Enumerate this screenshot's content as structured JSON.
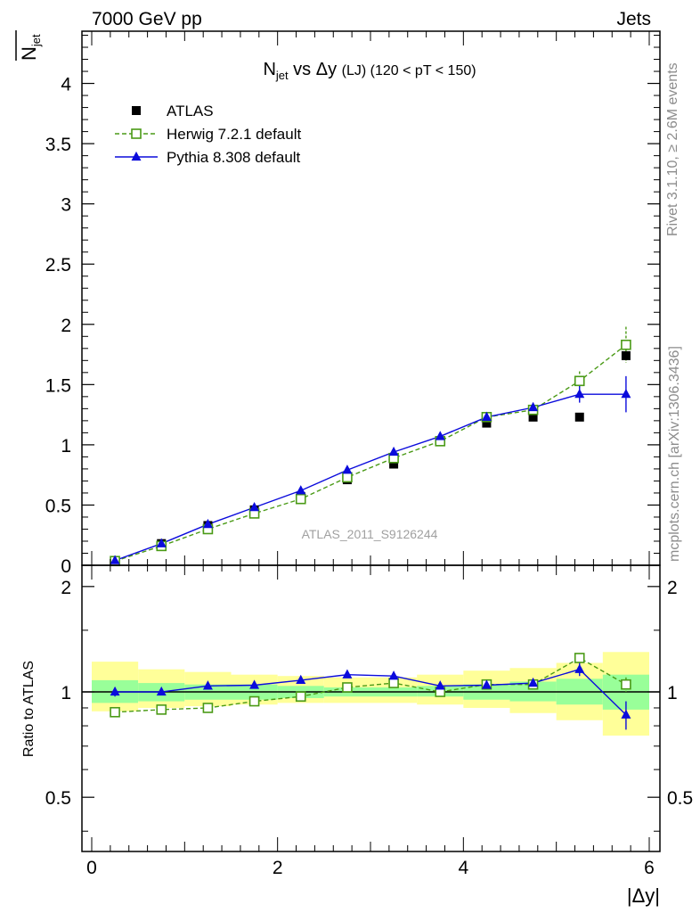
{
  "header": {
    "left": "7000 GeV pp",
    "right": "Jets"
  },
  "side_labels": {
    "rivet": "Rivet 3.1.10, ≥ 2.6M events",
    "mcplots": "mcplots.cern.ch [arXiv:1306.3436]"
  },
  "watermark": "ATLAS_2011_S9126244",
  "chart_data": [
    {
      "type": "scatter",
      "title": {
        "main": "N",
        "sub": "jet",
        "mid": " vs Δy ",
        "small": "(LJ)",
        "range": " (120 < pT < 150)"
      },
      "ylabel": {
        "main": "N",
        "sub": "jet",
        "display": "N̅jet"
      },
      "xlim": [
        0,
        6
      ],
      "ylim": [
        0,
        4.5
      ],
      "yticks": [
        "0",
        "0.5",
        "1",
        "1.5",
        "2",
        "2.5",
        "3",
        "3.5",
        "4"
      ],
      "ytick_values": [
        0,
        0.5,
        1,
        1.5,
        2,
        2.5,
        3,
        3.5,
        4
      ],
      "legend_position": "top-left",
      "series": [
        {
          "name": "ATLAS",
          "color": "#000000",
          "marker": "square-filled",
          "x": [
            0.25,
            0.75,
            1.25,
            1.75,
            2.25,
            2.75,
            3.25,
            3.75,
            4.25,
            4.75,
            5.25,
            5.75
          ],
          "y": [
            0.04,
            0.18,
            0.33,
            0.46,
            0.57,
            0.71,
            0.84,
            1.03,
            1.18,
            1.23,
            1.23,
            1.74
          ],
          "err": [
            0.01,
            0.01,
            0.01,
            0.01,
            0.01,
            0.01,
            0.01,
            0.01,
            0.01,
            0.02,
            0.02,
            0.03
          ]
        },
        {
          "name": "Herwig 7.2.1 default",
          "color": "#4a9a16",
          "marker": "square-open",
          "line": "dashed",
          "x": [
            0.25,
            0.75,
            1.25,
            1.75,
            2.25,
            2.75,
            3.25,
            3.75,
            4.25,
            4.75,
            5.25,
            5.75
          ],
          "y": [
            0.035,
            0.16,
            0.3,
            0.43,
            0.55,
            0.73,
            0.89,
            1.03,
            1.23,
            1.29,
            1.53,
            1.83
          ],
          "err": [
            0.005,
            0.01,
            0.01,
            0.01,
            0.01,
            0.015,
            0.015,
            0.02,
            0.03,
            0.04,
            0.08,
            0.15
          ]
        },
        {
          "name": "Pythia 8.308 default",
          "color": "#0b0bdc",
          "marker": "triangle-filled",
          "line": "solid",
          "x": [
            0.25,
            0.75,
            1.25,
            1.75,
            2.25,
            2.75,
            3.25,
            3.75,
            4.25,
            4.75,
            5.25,
            5.75
          ],
          "y": [
            0.04,
            0.18,
            0.34,
            0.48,
            0.62,
            0.79,
            0.94,
            1.07,
            1.23,
            1.31,
            1.42,
            1.42
          ],
          "err": [
            0.005,
            0.01,
            0.01,
            0.01,
            0.01,
            0.015,
            0.015,
            0.02,
            0.03,
            0.04,
            0.07,
            0.15
          ]
        }
      ]
    },
    {
      "type": "scatter",
      "ylabel": "Ratio to ATLAS",
      "xlabel": "|Δy|",
      "xlim": [
        0,
        6
      ],
      "ylim": [
        0.35,
        2.3
      ],
      "log_y": true,
      "xticks": [
        "0",
        "2",
        "4",
        "6"
      ],
      "xtick_values": [
        0,
        2,
        4,
        6
      ],
      "yticks": [
        "0.5",
        "1",
        "2"
      ],
      "ytick_values": [
        0.5,
        1,
        2
      ],
      "bands": {
        "inner_color": "#99ff99",
        "outer_color": "#ffff99",
        "x_edges": [
          0,
          0.5,
          1,
          1.5,
          2,
          2.5,
          3,
          3.5,
          4,
          4.5,
          5,
          5.5,
          6
        ],
        "inner": [
          [
            0.93,
            1.08
          ],
          [
            0.94,
            1.06
          ],
          [
            0.95,
            1.05
          ],
          [
            0.95,
            1.05
          ],
          [
            0.96,
            1.04
          ],
          [
            0.97,
            1.03
          ],
          [
            0.97,
            1.03
          ],
          [
            0.97,
            1.04
          ],
          [
            0.95,
            1.05
          ],
          [
            0.94,
            1.07
          ],
          [
            0.92,
            1.09
          ],
          [
            0.89,
            1.12
          ]
        ],
        "outer": [
          [
            0.88,
            1.22
          ],
          [
            0.9,
            1.16
          ],
          [
            0.91,
            1.14
          ],
          [
            0.92,
            1.12
          ],
          [
            0.93,
            1.11
          ],
          [
            0.93,
            1.1
          ],
          [
            0.93,
            1.1
          ],
          [
            0.92,
            1.12
          ],
          [
            0.9,
            1.15
          ],
          [
            0.87,
            1.17
          ],
          [
            0.83,
            1.21
          ],
          [
            0.75,
            1.3
          ]
        ]
      },
      "series": [
        {
          "name": "Herwig 7.2.1 default",
          "x": [
            0.25,
            0.75,
            1.25,
            1.75,
            2.25,
            2.75,
            3.25,
            3.75,
            4.25,
            4.75,
            5.25,
            5.75
          ],
          "y": [
            0.875,
            0.89,
            0.9,
            0.94,
            0.97,
            1.03,
            1.06,
            1.0,
            1.05,
            1.05,
            1.25,
            1.05
          ],
          "err": [
            0.02,
            0.01,
            0.01,
            0.01,
            0.01,
            0.01,
            0.01,
            0.01,
            0.02,
            0.03,
            0.03,
            0.05
          ]
        },
        {
          "name": "Pythia 8.308 default",
          "x": [
            0.25,
            0.75,
            1.25,
            1.75,
            2.25,
            2.75,
            3.25,
            3.75,
            4.25,
            4.75,
            5.25,
            5.75
          ],
          "y": [
            1.0,
            1.0,
            1.04,
            1.045,
            1.08,
            1.12,
            1.11,
            1.04,
            1.045,
            1.06,
            1.16,
            0.86
          ],
          "err": [
            0.03,
            0.01,
            0.01,
            0.01,
            0.01,
            0.01,
            0.01,
            0.01,
            0.02,
            0.03,
            0.05,
            0.08
          ]
        }
      ]
    }
  ]
}
